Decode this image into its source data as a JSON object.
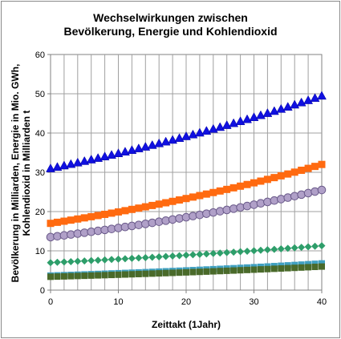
{
  "chart_data": {
    "type": "scatter",
    "title_line1": "Wechselwirkungen zwischen",
    "title_line2": "Bevölkerung, Energie und Kohlendioxid",
    "xlabel": "Zeittakt (1Jahr)",
    "ylabel_line1": "Bevölkerung in Milliarden, Energie in Mio. GWh,",
    "ylabel_line2": "Kohlendioxid in Milliarden t",
    "xlim": [
      0,
      40
    ],
    "ylim": [
      0,
      60
    ],
    "x_ticks": [
      0,
      10,
      20,
      30,
      40
    ],
    "y_ticks": [
      0,
      10,
      20,
      30,
      40,
      50,
      60
    ],
    "grid": true,
    "series": [
      {
        "marker": "triangle",
        "color": "#1010e0",
        "start": 31,
        "end": 49.5
      },
      {
        "marker": "square",
        "color": "#ff6a10",
        "start": 17,
        "end": 32
      },
      {
        "marker": "circle",
        "color": "#b0a0c8",
        "stroke": "#6a5a8a",
        "start": 13.5,
        "end": 25.5
      },
      {
        "marker": "diamond",
        "color": "#2e9e6a",
        "start": 7,
        "end": 11.3
      },
      {
        "marker": "square-small",
        "color": "#40a0c0",
        "start": 3.7,
        "end": 6.8
      },
      {
        "marker": "square-small",
        "color": "#4a6a2a",
        "start": 3.4,
        "end": 6.0
      }
    ]
  }
}
